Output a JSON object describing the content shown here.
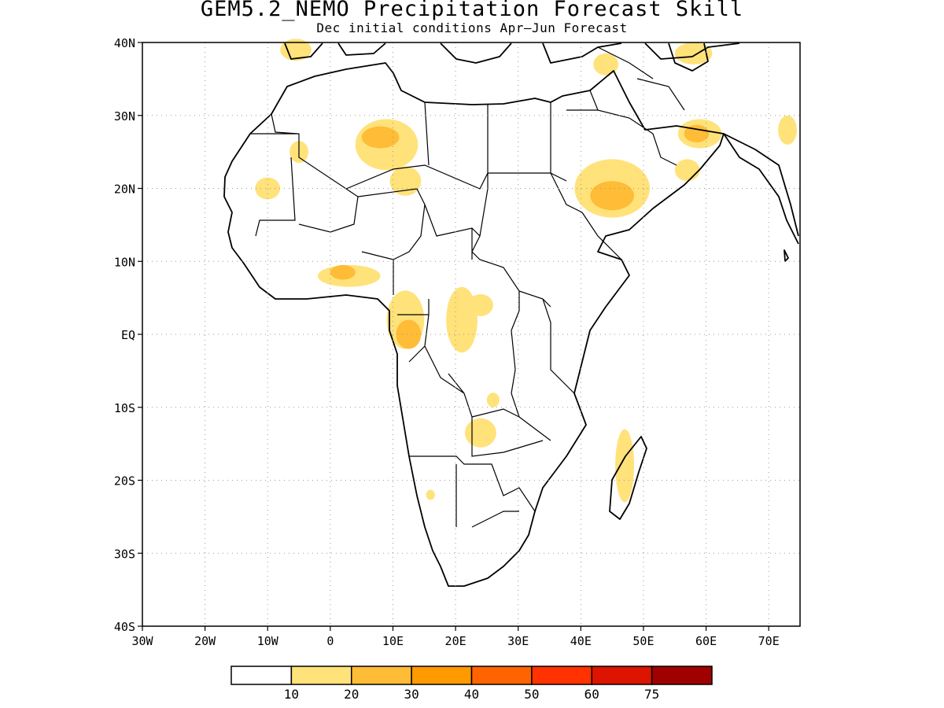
{
  "title": "GEM5.2_NEMO Precipitation Forecast Skill",
  "subtitle": "Dec initial conditions  Apr–Jun Forecast",
  "map": {
    "lon_range": [
      -30,
      75
    ],
    "lat_range": [
      -40,
      40
    ],
    "lat_ticks": [
      {
        "value": 40,
        "label": "40N"
      },
      {
        "value": 30,
        "label": "30N"
      },
      {
        "value": 20,
        "label": "20N"
      },
      {
        "value": 10,
        "label": "10N"
      },
      {
        "value": 0,
        "label": "EQ"
      },
      {
        "value": -10,
        "label": "10S"
      },
      {
        "value": -20,
        "label": "20S"
      },
      {
        "value": -30,
        "label": "30S"
      },
      {
        "value": -40,
        "label": "40S"
      }
    ],
    "lon_ticks": [
      {
        "value": -30,
        "label": "30W"
      },
      {
        "value": -20,
        "label": "20W"
      },
      {
        "value": -10,
        "label": "10W"
      },
      {
        "value": 0,
        "label": "0"
      },
      {
        "value": 10,
        "label": "10E"
      },
      {
        "value": 20,
        "label": "20E"
      },
      {
        "value": 30,
        "label": "30E"
      },
      {
        "value": 40,
        "label": "40E"
      },
      {
        "value": 50,
        "label": "50E"
      },
      {
        "value": 60,
        "label": "60E"
      },
      {
        "value": 70,
        "label": "70E"
      }
    ],
    "grid": "dotted"
  },
  "colorbar": {
    "labels": [
      "10",
      "20",
      "30",
      "40",
      "50",
      "60",
      "75"
    ],
    "colors": [
      "#ffffff",
      "#ffe27a",
      "#ffbc36",
      "#ff9a00",
      "#ff6400",
      "#ff3200",
      "#dc1400",
      "#a00000"
    ]
  },
  "skill_regions": [
    {
      "level": 1,
      "lon": 9,
      "lat": 26,
      "rx": 5,
      "ry": 3.5
    },
    {
      "level": 2,
      "lon": 8,
      "lat": 27,
      "rx": 3,
      "ry": 1.5
    },
    {
      "level": 1,
      "lon": 12,
      "lat": 21,
      "rx": 2.5,
      "ry": 2
    },
    {
      "level": 1,
      "lon": 45,
      "lat": 20,
      "rx": 6,
      "ry": 4
    },
    {
      "level": 2,
      "lon": 45,
      "lat": 19,
      "rx": 3.5,
      "ry": 2
    },
    {
      "level": 1,
      "lon": 59,
      "lat": 27.5,
      "rx": 3.5,
      "ry": 2
    },
    {
      "level": 2,
      "lon": 58.5,
      "lat": 27.5,
      "rx": 2,
      "ry": 1.2
    },
    {
      "level": 1,
      "lon": 57,
      "lat": 22.5,
      "rx": 2,
      "ry": 1.5
    },
    {
      "level": 1,
      "lon": 58,
      "lat": 38.5,
      "rx": 3,
      "ry": 1.5
    },
    {
      "level": 1,
      "lon": -5.5,
      "lat": 39,
      "rx": 2.5,
      "ry": 1.5
    },
    {
      "level": 1,
      "lon": 44,
      "lat": 37,
      "rx": 2,
      "ry": 1.5
    },
    {
      "level": 1,
      "lon": 73,
      "lat": 28,
      "rx": 1.5,
      "ry": 2
    },
    {
      "level": 1,
      "lon": -10,
      "lat": 20,
      "rx": 2,
      "ry": 1.5
    },
    {
      "level": 1,
      "lon": -5,
      "lat": 25,
      "rx": 1.5,
      "ry": 1.5
    },
    {
      "level": 1,
      "lon": 3,
      "lat": 8,
      "rx": 5,
      "ry": 1.5
    },
    {
      "level": 2,
      "lon": 2,
      "lat": 8.5,
      "rx": 2,
      "ry": 1
    },
    {
      "level": 1,
      "lon": 12,
      "lat": 2,
      "rx": 3,
      "ry": 4
    },
    {
      "level": 2,
      "lon": 12.5,
      "lat": 0,
      "rx": 2,
      "ry": 2
    },
    {
      "level": 1,
      "lon": 12,
      "lat": 4,
      "rx": 2.5,
      "ry": 1.5
    },
    {
      "level": 1,
      "lon": 21,
      "lat": 2,
      "rx": 2.5,
      "ry": 4.5
    },
    {
      "level": 1,
      "lon": 24,
      "lat": 4,
      "rx": 2,
      "ry": 1.5
    },
    {
      "level": 1,
      "lon": 24,
      "lat": -13.5,
      "rx": 2.5,
      "ry": 2
    },
    {
      "level": 1,
      "lon": 26,
      "lat": -9,
      "rx": 1,
      "ry": 1
    },
    {
      "level": 1,
      "lon": 47,
      "lat": -18,
      "rx": 1.5,
      "ry": 5
    },
    {
      "level": 1,
      "lon": 16,
      "lat": -22,
      "rx": 0.7,
      "ry": 0.7
    }
  ]
}
